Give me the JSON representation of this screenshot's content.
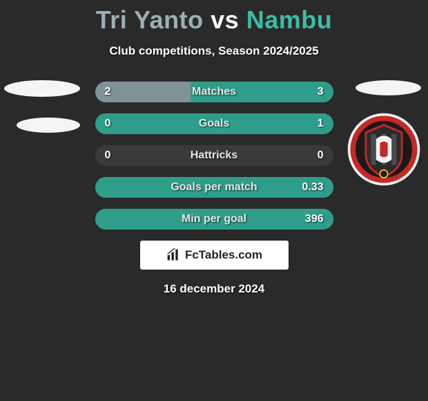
{
  "header": {
    "player1": "Tri Yanto",
    "vs": "vs",
    "player2": "Nambu",
    "subtitle": "Club competitions, Season 2024/2025",
    "p1_color": "#9bb0b5",
    "p2_color": "#3bbca6"
  },
  "stats": {
    "bar_left_color": "#7f9296",
    "bar_right_color": "#2e9e8a",
    "bar_bg_color": "#3a3a3a",
    "rows": [
      {
        "label": "Matches",
        "left": "2",
        "right": "3",
        "left_pct": 40,
        "right_pct": 60
      },
      {
        "label": "Goals",
        "left": "0",
        "right": "1",
        "left_pct": 0,
        "right_pct": 100
      },
      {
        "label": "Hattricks",
        "left": "0",
        "right": "0",
        "left_pct": 0,
        "right_pct": 0
      },
      {
        "label": "Goals per match",
        "left": "",
        "right": "0.33",
        "left_pct": 0,
        "right_pct": 100
      },
      {
        "label": "Min per goal",
        "left": "",
        "right": "396",
        "left_pct": 0,
        "right_pct": 100
      }
    ]
  },
  "crest": {
    "name": "bali-united-crest",
    "ring_color": "#c62828",
    "inner_bg": "#1a1a1a",
    "accent": "#f0c419"
  },
  "watermark": {
    "text": "FcTables.com"
  },
  "date": "16 december 2024"
}
